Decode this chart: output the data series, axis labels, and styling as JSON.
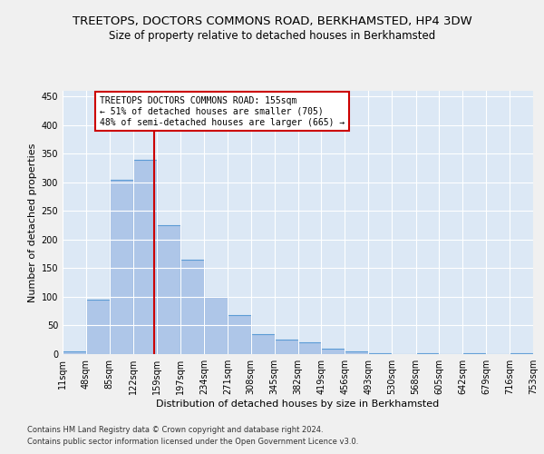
{
  "title": "TREETOPS, DOCTORS COMMONS ROAD, BERKHAMSTED, HP4 3DW",
  "subtitle": "Size of property relative to detached houses in Berkhamsted",
  "xlabel": "Distribution of detached houses by size in Berkhamsted",
  "ylabel": "Number of detached properties",
  "footnote1": "Contains HM Land Registry data © Crown copyright and database right 2024.",
  "footnote2": "Contains public sector information licensed under the Open Government Licence v3.0.",
  "bin_edges": [
    11,
    48,
    85,
    122,
    159,
    197,
    234,
    271,
    308,
    345,
    382,
    419,
    456,
    493,
    530,
    568,
    605,
    642,
    679,
    716,
    753
  ],
  "bar_heights": [
    5,
    95,
    305,
    340,
    225,
    165,
    100,
    68,
    35,
    25,
    20,
    10,
    5,
    2,
    0,
    2,
    0,
    2,
    0,
    2
  ],
  "bar_color": "#aec6e8",
  "bar_edge_color": "#5b9bd5",
  "bar_linewidth": 0.8,
  "property_size": 155,
  "red_line_color": "#cc0000",
  "annotation_text": "TREETOPS DOCTORS COMMONS ROAD: 155sqm\n← 51% of detached houses are smaller (705)\n48% of semi-detached houses are larger (665) →",
  "annotation_box_color": "#ffffff",
  "annotation_box_edge": "#cc0000",
  "ylim": [
    0,
    460
  ],
  "yticks": [
    0,
    50,
    100,
    150,
    200,
    250,
    300,
    350,
    400,
    450
  ],
  "background_color": "#dce8f5",
  "grid_color": "#ffffff",
  "fig_background": "#f0f0f0",
  "title_fontsize": 9.5,
  "subtitle_fontsize": 8.5,
  "axis_label_fontsize": 8,
  "tick_fontsize": 7,
  "annotation_fontsize": 7,
  "footnote_fontsize": 6
}
